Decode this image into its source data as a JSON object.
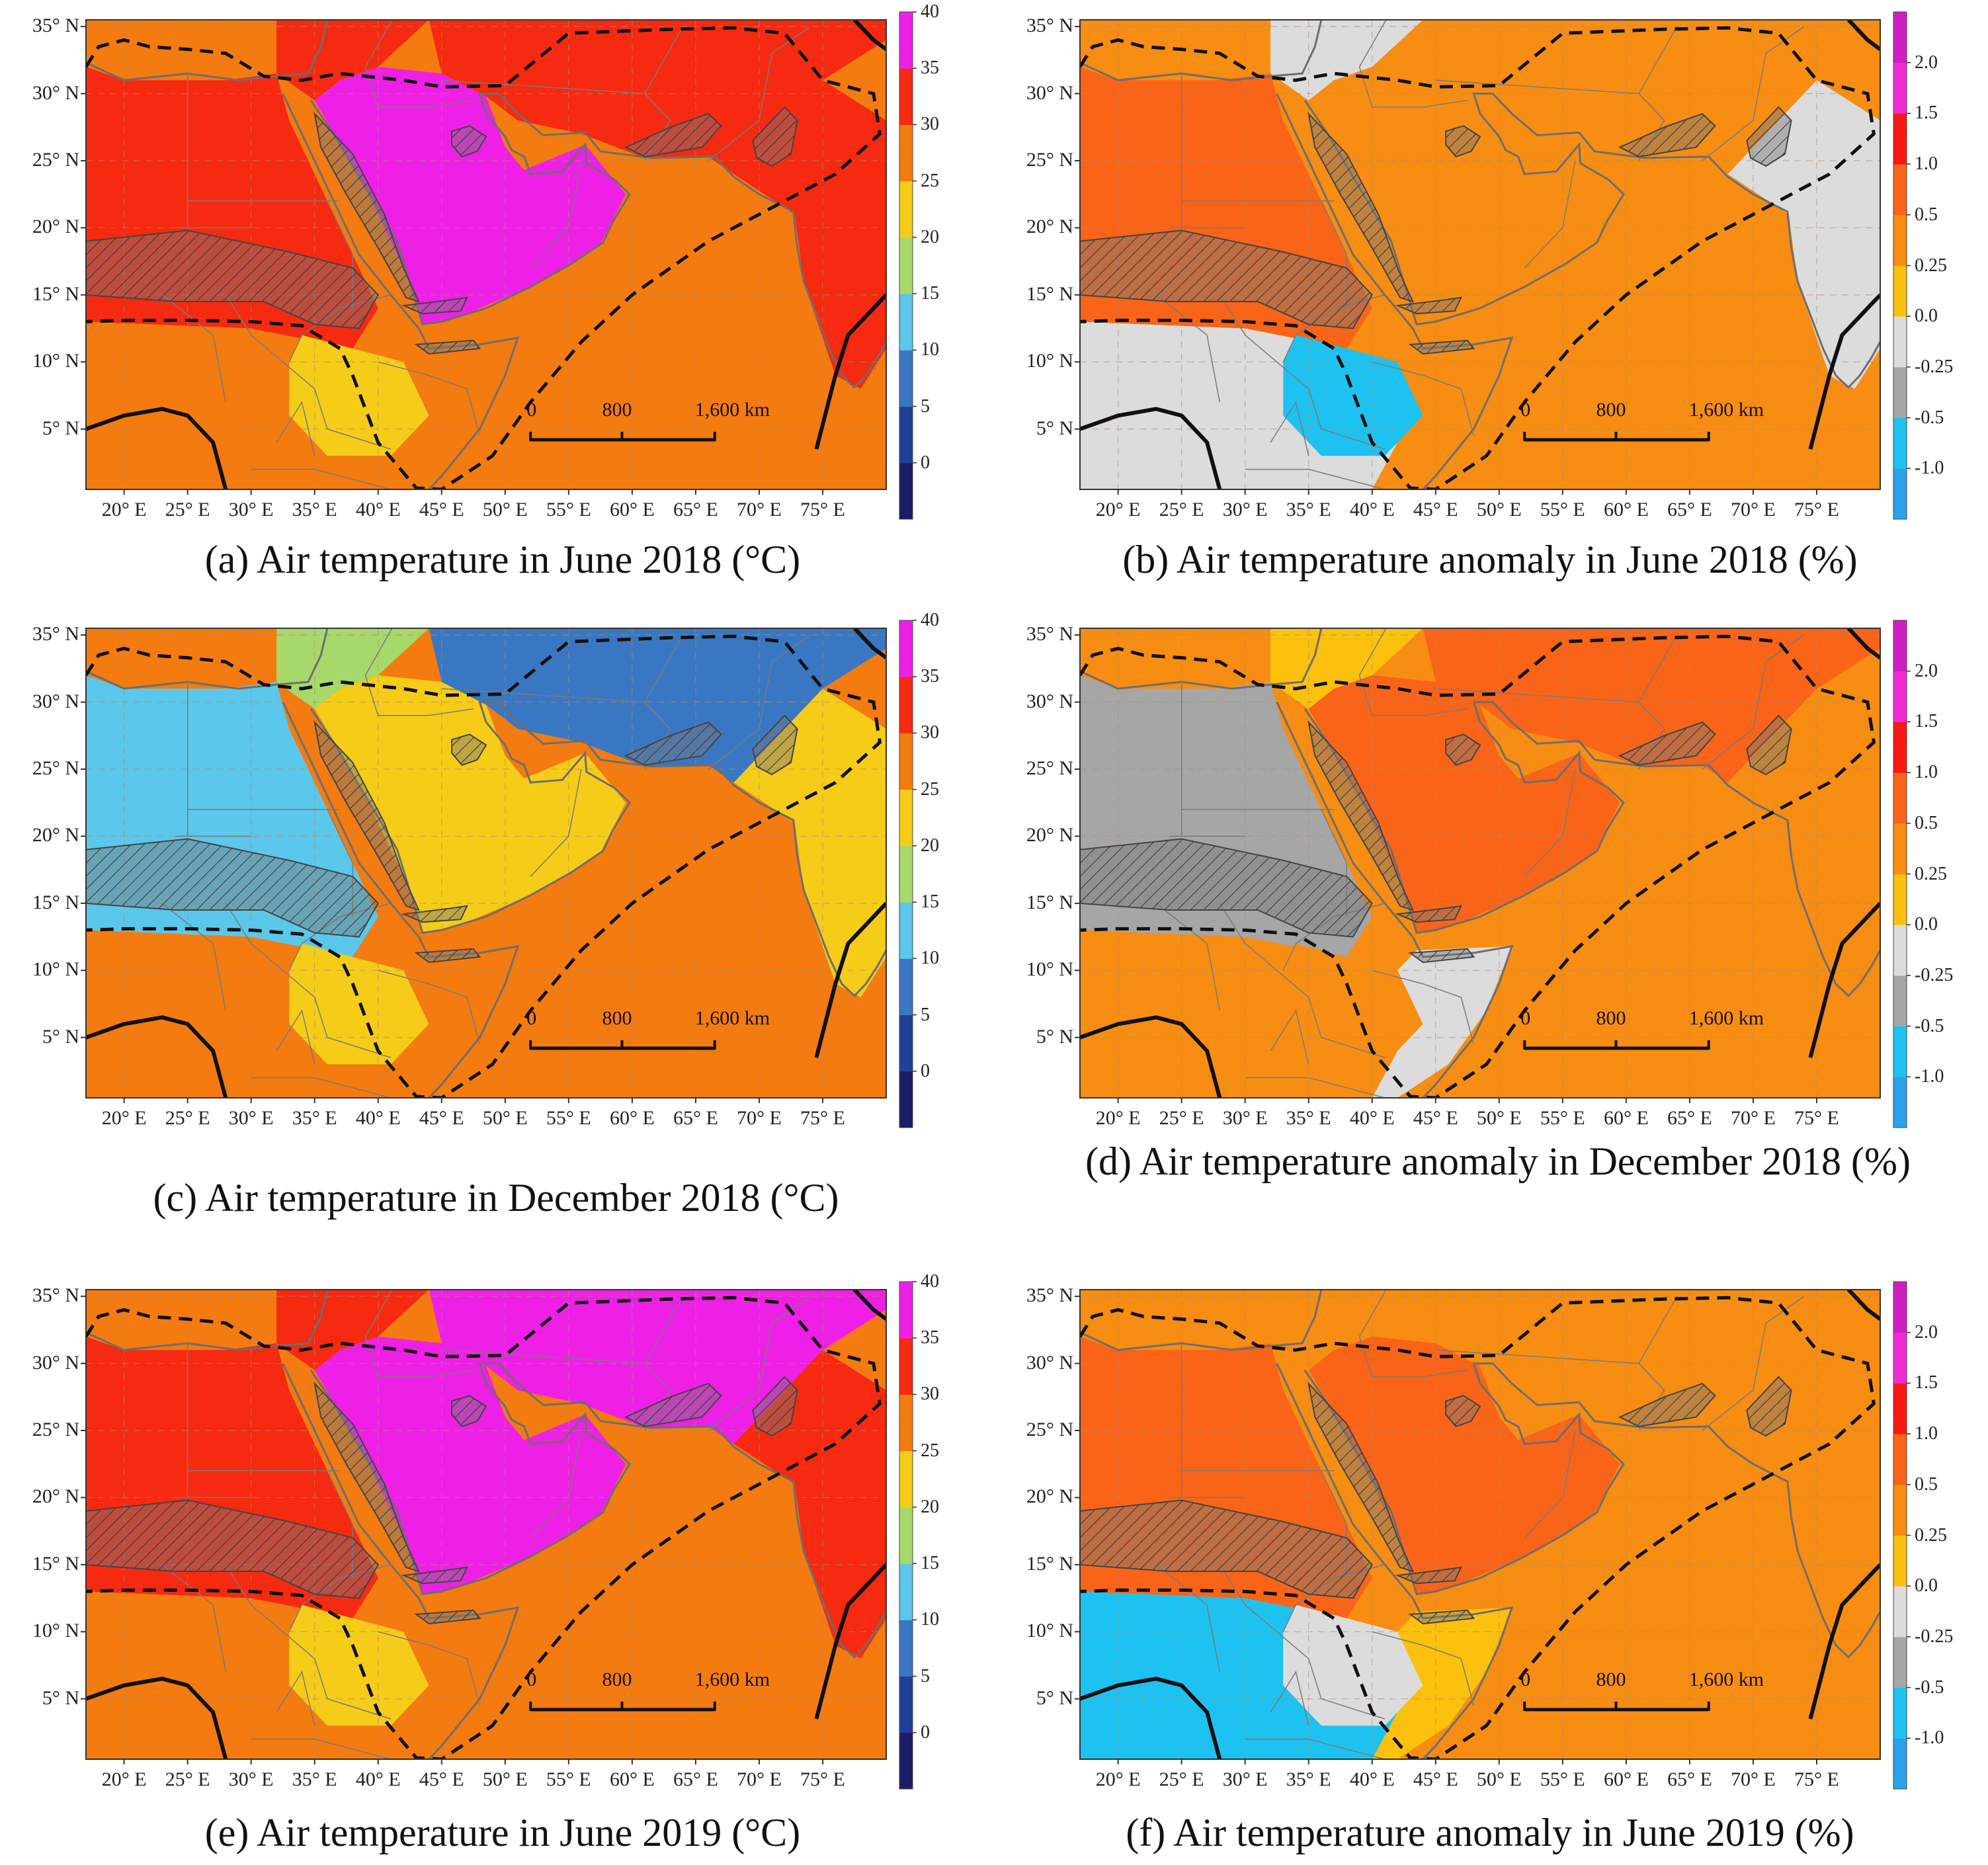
{
  "figure": {
    "axes": {
      "lat_labels": [
        "35° N",
        "30° N",
        "25° N",
        "20° N",
        "15° N",
        "10° N",
        "5° N"
      ],
      "lon_labels": [
        "20° E",
        "25° E",
        "30° E",
        "35° E",
        "40° E",
        "45° E",
        "50° E",
        "55° E",
        "60° E",
        "65° E",
        "70° E",
        "75° E"
      ],
      "lon_range": [
        17,
        80
      ],
      "lat_range": [
        0.5,
        35.5
      ]
    },
    "scalebar": {
      "labels": [
        "0",
        "800",
        "1,600 km"
      ]
    },
    "colorbars": {
      "temperature": {
        "tick_labels": [
          "40",
          "35",
          "30",
          "25",
          "20",
          "15",
          "10",
          "5",
          "0"
        ],
        "colors": [
          "#1c1c66",
          "#1f3f99",
          "#3a77c2",
          "#5bc7ea",
          "#a6d96a",
          "#f5cc18",
          "#f47b10",
          "#f52a10",
          "#ee20e6"
        ]
      },
      "anomaly": {
        "tick_labels": [
          "2.0",
          "1.5",
          "1.0",
          "0.5",
          "0.25",
          "0.0",
          "-0.25",
          "-0.5",
          "-1.0"
        ],
        "colors": [
          "#2ba2ea",
          "#1ec2f0",
          "#a6a6a6",
          "#dcdcdc",
          "#fbc10c",
          "#f78d12",
          "#f96418",
          "#f51912",
          "#f02bd4",
          "#cf1ec2"
        ]
      }
    },
    "panels": [
      {
        "id": "a",
        "caption": "(a) Air temperature in June 2018 (°C)",
        "variable": "temperature",
        "dominant": "warm"
      },
      {
        "id": "b",
        "caption": "(b) Air temperature anomaly in June 2018 (%)",
        "variable": "anomaly",
        "dominant": "mild"
      },
      {
        "id": "c",
        "caption": "(c) Air temperature in December 2018 (°C)",
        "variable": "temperature",
        "dominant": "cool"
      },
      {
        "id": "d",
        "caption": "(d) Air temperature anomaly in December 2018 (%)",
        "variable": "anomaly",
        "dominant": "warm-anomaly"
      },
      {
        "id": "e",
        "caption": "(e) Air temperature in June 2019 (°C)",
        "variable": "temperature",
        "dominant": "hot"
      },
      {
        "id": "f",
        "caption": "(f) Air temperature anomaly in June 2019 (%)",
        "variable": "anomaly",
        "dominant": "mixed"
      }
    ]
  }
}
